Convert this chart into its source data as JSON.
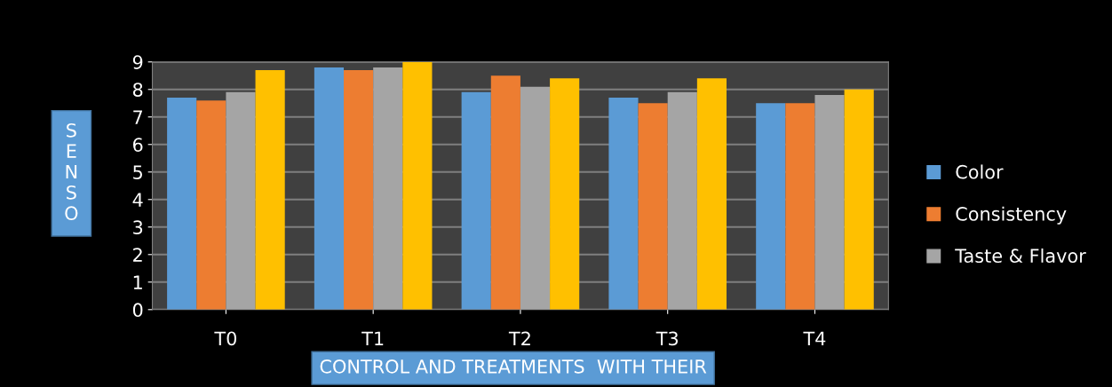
{
  "chart_data": {
    "type": "bar",
    "xlabel": "CONTROL AND TREATMENTS  WITH THEIR",
    "ylabel": "S\nE\nN\nS\nO",
    "categories": [
      "T0",
      "T1",
      "T2",
      "T3",
      "T4"
    ],
    "series": [
      {
        "name": "Color",
        "color": "#5b9bd5",
        "values": [
          7.7,
          8.8,
          7.9,
          7.7,
          7.5
        ]
      },
      {
        "name": "Consistency",
        "color": "#ed7d31",
        "values": [
          7.6,
          8.7,
          8.5,
          7.5,
          7.5
        ]
      },
      {
        "name": "Taste & Flavor",
        "color": "#a5a5a5",
        "values": [
          7.9,
          8.8,
          8.1,
          7.9,
          7.8
        ]
      },
      {
        "color": "#ffc000",
        "values": [
          8.7,
          9.0,
          8.4,
          8.4,
          8.0
        ]
      }
    ],
    "ylim": [
      0,
      9
    ],
    "yticks": [
      0,
      1,
      2,
      3,
      4,
      5,
      6,
      7,
      8,
      9
    ],
    "grid": "y",
    "legend": "right"
  }
}
